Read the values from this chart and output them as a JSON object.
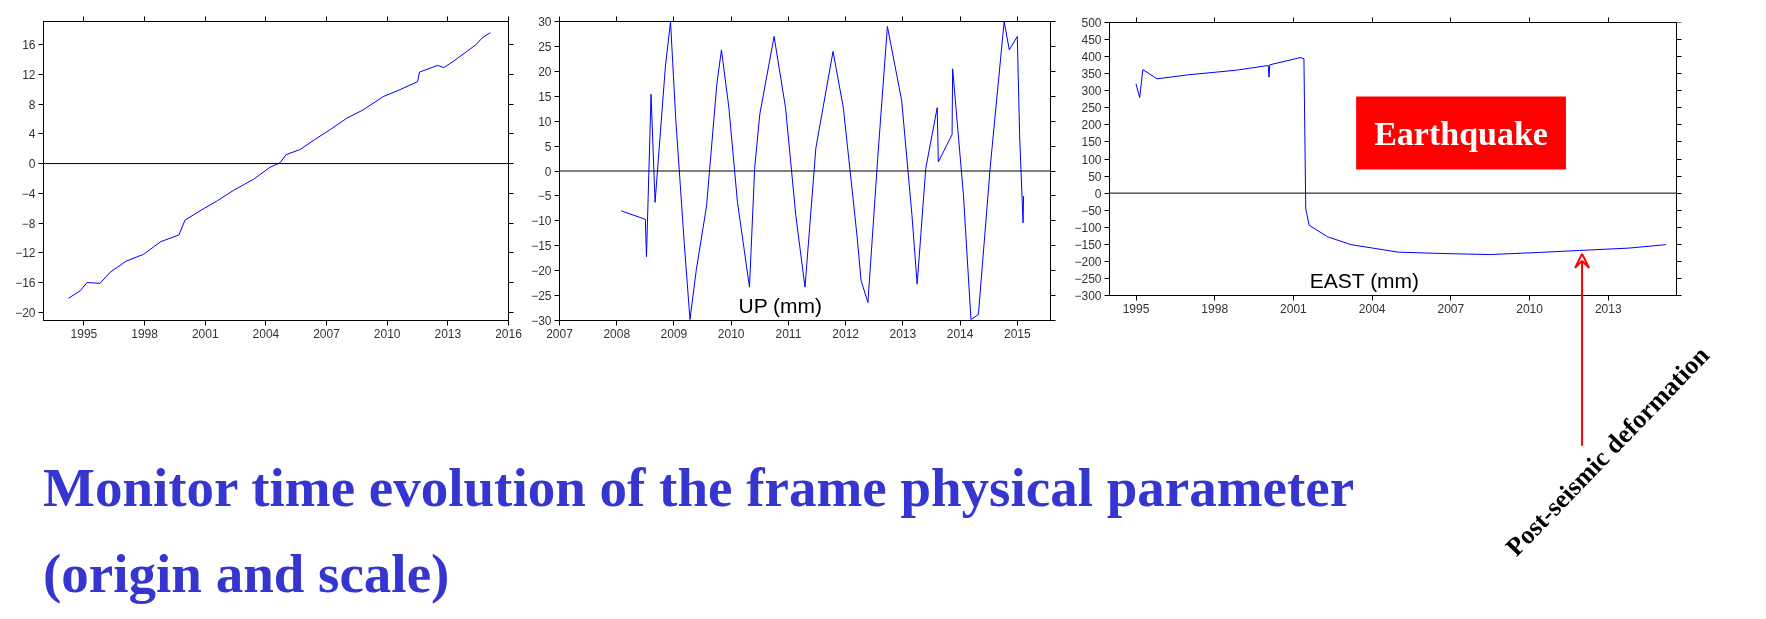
{
  "chart_data": [
    {
      "type": "line",
      "title": "Monitor time evolution of the frame physical parameter (origin and scale)",
      "xlim": [
        1993.0,
        2016.0
      ],
      "ylim": [
        -21.1,
        19.1
      ],
      "xticks": [
        1995,
        1998,
        2001,
        2004,
        2007,
        2010,
        2013,
        2016
      ],
      "yticks": [
        -20,
        -16,
        -12,
        -8,
        -4,
        0,
        4,
        8,
        12,
        16
      ],
      "ref_lines": [
        {
          "axis": "y",
          "value": 0,
          "color": "#000000"
        }
      ],
      "series": [
        {
          "color": "#0000ff",
          "x": [
            1994.24,
            1994.82,
            1995.15,
            1995.8,
            1996.3,
            1997.1,
            1997.95,
            1998.8,
            1999.7,
            2000.0,
            2000.9,
            2001.6,
            2002.4,
            2003.4,
            2004.2,
            2004.7,
            2005.0,
            2005.7,
            2006.4,
            2007.2,
            2008.0,
            2008.8,
            2009.8,
            2010.6,
            2011.5,
            2011.6,
            2012.5,
            2012.8,
            2013.3,
            2014.4,
            2014.7,
            2015.1
          ],
          "values": [
            -18.1,
            -17.1,
            -16.0,
            -16.1,
            -14.6,
            -13.1,
            -12.2,
            -10.5,
            -9.6,
            -7.6,
            -6.1,
            -5.0,
            -3.6,
            -2.1,
            -0.5,
            0.1,
            1.2,
            1.9,
            3.2,
            4.6,
            6.1,
            7.2,
            9.0,
            9.9,
            11.0,
            12.3,
            13.2,
            12.9,
            13.8,
            16.0,
            16.9,
            17.6
          ]
        }
      ]
    },
    {
      "type": "line",
      "xlim": [
        2007,
        2015.58
      ],
      "ylim": [
        -30,
        30
      ],
      "xticks": [
        2007,
        2008,
        2009,
        2010,
        2011,
        2012,
        2013,
        2014,
        2015
      ],
      "yticks": [
        -30,
        -25,
        -20,
        -15,
        -10,
        -5,
        0,
        5,
        10,
        15,
        20,
        25,
        30
      ],
      "ref_lines": [
        {
          "axis": "y",
          "value": 0,
          "color": "#000000"
        }
      ],
      "annotations": [
        "UP (mm)"
      ],
      "series": [
        {
          "color": "#0000ff",
          "x": [
            2008.08,
            2008.5,
            2008.52,
            2008.6,
            2008.67,
            2008.85,
            2008.94,
            2009.03,
            2009.18,
            2009.28,
            2009.39,
            2009.57,
            2009.75,
            2009.83,
            2009.96,
            2010.11,
            2010.32,
            2010.41,
            2010.5,
            2010.75,
            2010.95,
            2011.13,
            2011.29,
            2011.48,
            2011.78,
            2011.96,
            2012.2,
            2012.27,
            2012.39,
            2012.56,
            2012.73,
            2012.98,
            2013.16,
            2013.25,
            2013.4,
            2013.6,
            2013.62,
            2013.86,
            2013.87,
            2014.06,
            2014.19,
            2014.32,
            2014.53,
            2014.77,
            2014.86,
            2015.0,
            2015.04,
            2015.1,
            2015.11
          ],
          "values": [
            -8.0,
            -9.7,
            -17.2,
            15.4,
            -6.3,
            20.9,
            30,
            10.7,
            -14.5,
            -29.8,
            -19.9,
            -7.0,
            17.5,
            24.3,
            12.7,
            -6.3,
            -23.3,
            0.5,
            11.4,
            27,
            12.7,
            -9.0,
            -23.3,
            4.6,
            24,
            12.7,
            -13.1,
            -22,
            -26.4,
            2.5,
            29,
            14.1,
            -9,
            -22.7,
            0.5,
            12.7,
            1.8,
            7.3,
            20.5,
            -5.0,
            -29.8,
            -28.8,
            1.2,
            30,
            24.3,
            27,
            7.3,
            -10.4,
            -5
          ]
        }
      ]
    },
    {
      "type": "line",
      "xlim": [
        1993.99,
        2015.6
      ],
      "ylim": [
        -300,
        500
      ],
      "xticks": [
        1995,
        1998,
        2001,
        2004,
        2007,
        2010,
        2013
      ],
      "yticks": [
        -300,
        -250,
        -200,
        -150,
        -100,
        -50,
        0,
        50,
        100,
        150,
        200,
        250,
        300,
        350,
        400,
        450,
        500
      ],
      "ref_lines": [
        {
          "axis": "y",
          "value": 0,
          "color": "#000000"
        }
      ],
      "annotations": [
        "EAST (mm)",
        "Earthquake",
        {
          "text": "Post-seismic deformation",
          "x": 2012.0,
          "y": -170
        }
      ],
      "series": [
        {
          "color": "#0000ff",
          "x": [
            1995.0,
            1995.14,
            1995.18,
            1995.26,
            1995.8,
            1997.03,
            1998.8,
            2000.04,
            2000.07,
            2000.1,
            2001.26,
            2001.4,
            2001.47,
            2001.6,
            2002.3,
            2003.2,
            2005.0,
            2006.7,
            2008.5,
            2010.3,
            2011.9,
            2013.8,
            2015.2
          ],
          "values": [
            320,
            280,
            307,
            362,
            335,
            347,
            360,
            374,
            340,
            376,
            397,
            394,
            -47,
            -94,
            -128,
            -151,
            -173,
            -177,
            -180,
            -174,
            -168,
            -161,
            -151
          ]
        }
      ]
    }
  ]
}
